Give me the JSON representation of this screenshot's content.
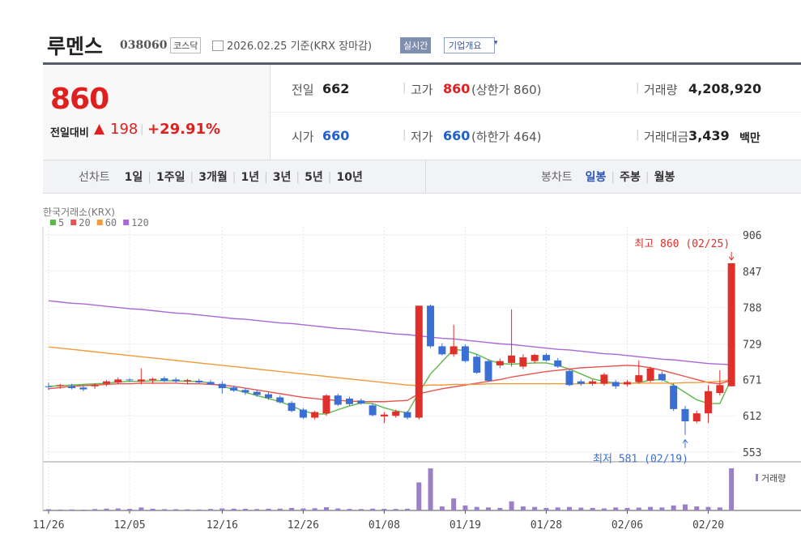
{
  "header": {
    "name": "루멘스",
    "code": "038060",
    "market": "코스닥",
    "date": "2026.02.25 기준(KRX 장마감)",
    "realtime": "실시간",
    "overview": "기업개요"
  },
  "quote": {
    "price": "860",
    "change_label": "전일대비",
    "change": "198",
    "change_pct": "+29.91%"
  },
  "stats": {
    "prev_label": "전일",
    "prev": "662",
    "high_label": "고가",
    "high": "860",
    "high_limit": "(상한가 860)",
    "volume_label": "거래량",
    "volume": "4,208,920",
    "open_label": "시가",
    "open": "660",
    "low_label": "저가",
    "low": "660",
    "low_limit": "(하한가 464)",
    "amount_label": "거래대금",
    "amount": "3,439",
    "amount_unit": "백만"
  },
  "periods": {
    "line_label": "선차트",
    "line": [
      "1일",
      "1주일",
      "3개월",
      "1년",
      "3년",
      "5년",
      "10년"
    ],
    "candle_label": "봉차트",
    "candle": [
      "일봉",
      "주봉",
      "월봉"
    ]
  },
  "chart_data": {
    "type": "candlestick",
    "source": "한국거래소(KRX)",
    "volume_label": "거래량",
    "high_label": "최고 860 (02/25)",
    "low_label": "최저 581 (02/19)",
    "up_color": "#e0302b",
    "down_color": "#3b6fd4",
    "volume_color": "#9b7fc9",
    "categories": [
      "11/26",
      null,
      null,
      null,
      null,
      null,
      null,
      "12/05",
      null,
      null,
      null,
      null,
      null,
      null,
      null,
      "12/16",
      null,
      null,
      null,
      null,
      null,
      null,
      "12/26",
      null,
      null,
      null,
      null,
      null,
      null,
      "01/08",
      null,
      null,
      null,
      null,
      null,
      null,
      "01/19",
      null,
      null,
      null,
      null,
      null,
      null,
      "01/28",
      null,
      null,
      null,
      null,
      null,
      null,
      "02/06",
      null,
      null,
      null,
      null,
      null,
      null,
      "02/20",
      null,
      null
    ],
    "open": [
      660,
      661,
      660,
      658,
      660,
      664,
      666,
      671,
      668,
      670,
      673,
      671,
      668,
      669,
      667,
      664,
      658,
      654,
      651,
      647,
      642,
      633,
      622,
      609,
      616,
      645,
      640,
      637,
      629,
      611,
      612,
      618,
      609,
      791,
      725,
      712,
      725,
      708,
      701,
      694,
      698,
      692,
      701,
      711,
      702,
      685,
      668,
      664,
      664,
      667,
      663,
      667,
      669,
      680,
      661,
      623,
      603,
      616,
      649,
      660
    ],
    "high": [
      666,
      664,
      664,
      662,
      664,
      670,
      674,
      673,
      689,
      674,
      676,
      674,
      672,
      672,
      670,
      668,
      661,
      657,
      654,
      650,
      645,
      636,
      625,
      620,
      647,
      648,
      643,
      640,
      632,
      618,
      622,
      620,
      791,
      793,
      730,
      760,
      728,
      712,
      704,
      705,
      785,
      712,
      713,
      714,
      706,
      688,
      671,
      671,
      682,
      670,
      670,
      702,
      692,
      684,
      665,
      628,
      620,
      662,
      686,
      860
    ],
    "low": [
      654,
      656,
      655,
      652,
      656,
      660,
      663,
      667,
      663,
      664,
      667,
      666,
      663,
      664,
      662,
      648,
      651,
      646,
      643,
      638,
      632,
      618,
      607,
      606,
      612,
      628,
      628,
      630,
      611,
      600,
      609,
      606,
      606,
      722,
      710,
      708,
      699,
      680,
      667,
      690,
      692,
      688,
      697,
      700,
      690,
      660,
      661,
      661,
      661,
      656,
      660,
      664,
      666,
      668,
      620,
      581,
      600,
      600,
      645,
      660
    ],
    "close": [
      659,
      662,
      657,
      655,
      662,
      668,
      671,
      670,
      671,
      672,
      669,
      668,
      670,
      666,
      663,
      657,
      653,
      650,
      646,
      641,
      634,
      620,
      609,
      618,
      645,
      630,
      631,
      632,
      613,
      614,
      619,
      609,
      791,
      725,
      712,
      725,
      701,
      682,
      669,
      701,
      710,
      707,
      711,
      702,
      692,
      662,
      664,
      668,
      679,
      660,
      667,
      678,
      689,
      670,
      623,
      603,
      616,
      652,
      662,
      860
    ],
    "volume": [
      120000,
      90000,
      100000,
      80000,
      140000,
      180000,
      200000,
      150000,
      300000,
      170000,
      130000,
      120000,
      110000,
      100000,
      150000,
      200000,
      180000,
      160000,
      140000,
      170000,
      180000,
      250000,
      200000,
      220000,
      320000,
      200000,
      150000,
      140000,
      180000,
      160000,
      150000,
      170000,
      2800000,
      4200000,
      400000,
      1200000,
      500000,
      350000,
      300000,
      250000,
      900000,
      400000,
      350000,
      250000,
      300000,
      350000,
      280000,
      250000,
      200000,
      300000,
      250000,
      280000,
      350000,
      300000,
      500000,
      600000,
      400000,
      350000,
      300000,
      4208920
    ],
    "series": [
      {
        "name": "5",
        "color": "#5cb94a",
        "values": [
          660,
          661,
          662,
          663,
          664,
          665,
          667,
          668,
          668,
          669,
          669,
          669,
          668,
          668,
          665,
          660,
          655,
          650,
          645,
          640,
          635,
          628,
          620,
          615,
          615,
          622,
          628,
          633,
          632,
          625,
          620,
          617,
          650,
          680,
          700,
          720,
          718,
          712,
          703,
          697,
          696,
          697,
          698,
          698,
          694,
          688,
          680,
          672,
          668,
          665,
          664,
          666,
          670,
          671,
          662,
          650,
          638,
          632,
          632,
          672
        ]
      },
      {
        "name": "20",
        "color": "#e8534e",
        "values": [
          656,
          658,
          660,
          661,
          662,
          663,
          664,
          664,
          665,
          665,
          665,
          665,
          664,
          664,
          663,
          662,
          660,
          657,
          654,
          651,
          648,
          645,
          642,
          640,
          638,
          637,
          636,
          635,
          635,
          635,
          636,
          637,
          648,
          652,
          656,
          659,
          662,
          665,
          668,
          671,
          675,
          678,
          681,
          684,
          686,
          688,
          690,
          691,
          692,
          693,
          694,
          693,
          690,
          686,
          681,
          676,
          671,
          666,
          664,
          670
        ]
      },
      {
        "name": "60",
        "color": "#f39a3c",
        "values": [
          724,
          722,
          720,
          718,
          716,
          714,
          712,
          710,
          708,
          706,
          704,
          702,
          700,
          698,
          696,
          694,
          692,
          690,
          688,
          686,
          684,
          682,
          680,
          678,
          676,
          674,
          672,
          670,
          668,
          666,
          664,
          662,
          661,
          662,
          662,
          663,
          663,
          663,
          664,
          664,
          664,
          664,
          664,
          664,
          664,
          664,
          664,
          665,
          665,
          665,
          665,
          665,
          665,
          665,
          665,
          666,
          666,
          667,
          668,
          670
        ]
      },
      {
        "name": "120",
        "color": "#a868d8",
        "values": [
          799,
          797,
          795,
          794,
          792,
          790,
          788,
          786,
          785,
          783,
          781,
          779,
          778,
          776,
          774,
          772,
          770,
          769,
          767,
          765,
          763,
          762,
          760,
          758,
          756,
          754,
          753,
          751,
          749,
          747,
          745,
          744,
          742,
          740,
          738,
          737,
          735,
          733,
          731,
          729,
          728,
          726,
          724,
          722,
          720,
          719,
          717,
          715,
          713,
          712,
          710,
          708,
          706,
          704,
          703,
          701,
          699,
          697,
          696,
          695
        ]
      }
    ],
    "ylim": [
      553,
      906
    ],
    "yticks": [
      553,
      612,
      671,
      729,
      788,
      847,
      906
    ],
    "grid": true
  }
}
